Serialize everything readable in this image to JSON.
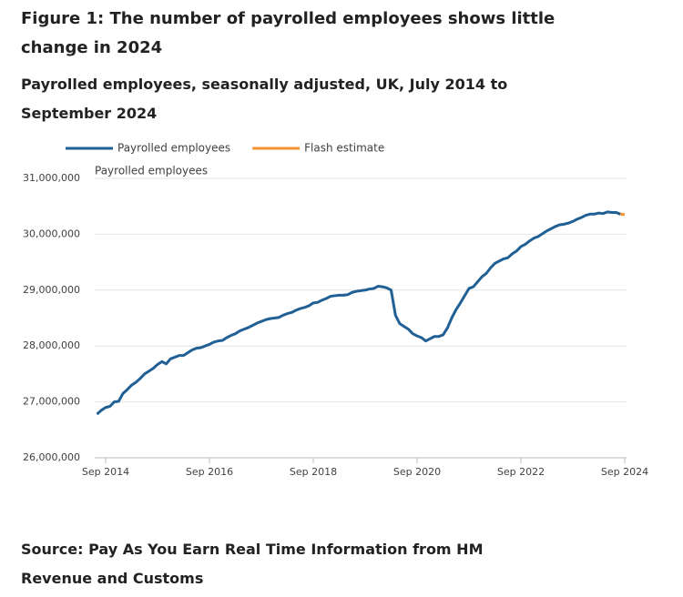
{
  "chart_data": {
    "type": "line",
    "title": "Figure 1: The number of payrolled employees shows little change in 2024",
    "subtitle": "Payrolled employees, seasonally adjusted, UK, July 2014 to September 2024",
    "y_label": "Payrolled employees",
    "source": "Source: Pay As You Earn Real Time Information from HM Revenue and Customs",
    "legend": "top-left",
    "grid": true,
    "xlim": [
      "2014-07",
      "2024-09"
    ],
    "xticks": [
      {
        "value": "2014-09",
        "label": "Sep 2014"
      },
      {
        "value": "2016-09",
        "label": "Sep 2016"
      },
      {
        "value": "2018-09",
        "label": "Sep 2018"
      },
      {
        "value": "2020-09",
        "label": "Sep 2020"
      },
      {
        "value": "2022-09",
        "label": "Sep 2022"
      },
      {
        "value": "2024-09",
        "label": "Sep 2024"
      }
    ],
    "ylim": [
      26000000,
      31000000
    ],
    "yticks": [
      {
        "value": 26000000,
        "label": "26,000,000"
      },
      {
        "value": 27000000,
        "label": "27,000,000"
      },
      {
        "value": 28000000,
        "label": "28,000,000"
      },
      {
        "value": 29000000,
        "label": "29,000,000"
      },
      {
        "value": 30000000,
        "label": "30,000,000"
      },
      {
        "value": 31000000,
        "label": "31,000,000"
      }
    ],
    "series": [
      {
        "name": "Payrolled employees",
        "color": "#206095",
        "x": [
          "2014-07",
          "2014-08",
          "2014-09",
          "2014-10",
          "2014-11",
          "2014-12",
          "2015-01",
          "2015-02",
          "2015-03",
          "2015-04",
          "2015-05",
          "2015-06",
          "2015-07",
          "2015-08",
          "2015-09",
          "2015-10",
          "2015-11",
          "2015-12",
          "2016-01",
          "2016-02",
          "2016-03",
          "2016-04",
          "2016-05",
          "2016-06",
          "2016-07",
          "2016-08",
          "2016-09",
          "2016-10",
          "2016-11",
          "2016-12",
          "2017-01",
          "2017-02",
          "2017-03",
          "2017-04",
          "2017-05",
          "2017-06",
          "2017-07",
          "2017-08",
          "2017-09",
          "2017-10",
          "2017-11",
          "2017-12",
          "2018-01",
          "2018-02",
          "2018-03",
          "2018-04",
          "2018-05",
          "2018-06",
          "2018-07",
          "2018-08",
          "2018-09",
          "2018-10",
          "2018-11",
          "2018-12",
          "2019-01",
          "2019-02",
          "2019-03",
          "2019-04",
          "2019-05",
          "2019-06",
          "2019-07",
          "2019-08",
          "2019-09",
          "2019-10",
          "2019-11",
          "2019-12",
          "2020-01",
          "2020-02",
          "2020-03",
          "2020-04",
          "2020-05",
          "2020-06",
          "2020-07",
          "2020-08",
          "2020-09",
          "2020-10",
          "2020-11",
          "2020-12",
          "2021-01",
          "2021-02",
          "2021-03",
          "2021-04",
          "2021-05",
          "2021-06",
          "2021-07",
          "2021-08",
          "2021-09",
          "2021-10",
          "2021-11",
          "2021-12",
          "2022-01",
          "2022-02",
          "2022-03",
          "2022-04",
          "2022-05",
          "2022-06",
          "2022-07",
          "2022-08",
          "2022-09",
          "2022-10",
          "2022-11",
          "2022-12",
          "2023-01",
          "2023-02",
          "2023-03",
          "2023-04",
          "2023-05",
          "2023-06",
          "2023-07",
          "2023-08",
          "2023-09",
          "2023-10",
          "2023-11",
          "2023-12",
          "2024-01",
          "2024-02",
          "2024-03",
          "2024-04",
          "2024-05",
          "2024-06",
          "2024-07",
          "2024-08"
        ],
        "values": [
          26780000,
          26850000,
          26900000,
          26920000,
          27000000,
          27010000,
          27150000,
          27220000,
          27300000,
          27350000,
          27420000,
          27500000,
          27550000,
          27600000,
          27670000,
          27720000,
          27680000,
          27770000,
          27800000,
          27830000,
          27830000,
          27880000,
          27930000,
          27960000,
          27970000,
          28000000,
          28030000,
          28070000,
          28090000,
          28100000,
          28150000,
          28190000,
          28220000,
          28270000,
          28300000,
          28330000,
          28370000,
          28410000,
          28440000,
          28470000,
          28490000,
          28500000,
          28510000,
          28550000,
          28580000,
          28600000,
          28640000,
          28670000,
          28690000,
          28720000,
          28770000,
          28780000,
          28820000,
          28850000,
          28890000,
          28900000,
          28910000,
          28910000,
          28920000,
          28960000,
          28980000,
          28990000,
          29000000,
          29020000,
          29030000,
          29070000,
          29060000,
          29040000,
          29000000,
          28550000,
          28400000,
          28350000,
          28300000,
          28220000,
          28180000,
          28150000,
          28090000,
          28130000,
          28170000,
          28170000,
          28200000,
          28320000,
          28500000,
          28650000,
          28770000,
          28900000,
          29030000,
          29060000,
          29150000,
          29240000,
          29300000,
          29400000,
          29480000,
          29520000,
          29560000,
          29580000,
          29650000,
          29700000,
          29780000,
          29820000,
          29880000,
          29930000,
          29960000,
          30010000,
          30060000,
          30100000,
          30140000,
          30170000,
          30180000,
          30200000,
          30230000,
          30270000,
          30300000,
          30340000,
          30360000,
          30360000,
          30380000,
          30370000,
          30400000,
          30390000,
          30390000,
          30360000
        ]
      },
      {
        "name": "Flash estimate",
        "color": "#f39431",
        "x": [
          "2024-08",
          "2024-09"
        ],
        "values": [
          30360000,
          30350000
        ]
      }
    ]
  }
}
